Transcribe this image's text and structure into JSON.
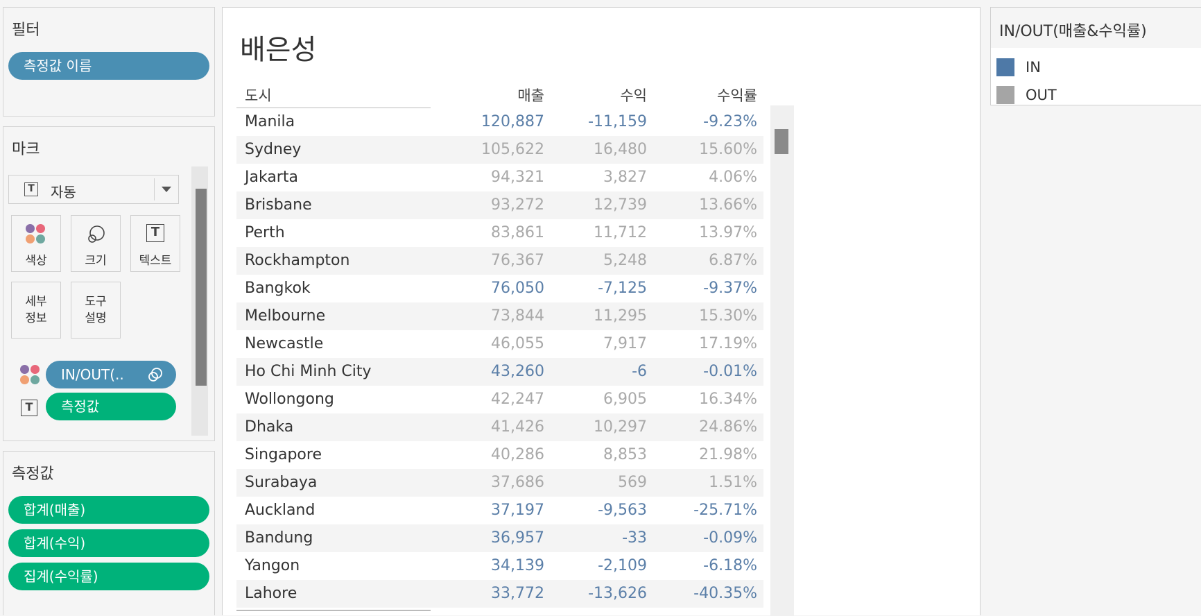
{
  "filters": {
    "title": "필터",
    "pills": [
      "측정값 이름"
    ]
  },
  "marks": {
    "title": "마크",
    "type_dropdown": "자동",
    "buttons": {
      "color": "색상",
      "size": "크기",
      "text": "텍스트",
      "detail": [
        "세부",
        "정보"
      ],
      "tooltip": [
        "도구",
        "설명"
      ]
    },
    "color_pill": "IN/OUT(..",
    "text_pill": "측정값"
  },
  "measures": {
    "title": "측정값",
    "pills": [
      "합계(매출)",
      "합계(수익)",
      "집계(수익률)"
    ]
  },
  "sheet": {
    "title": "배은성",
    "columns": [
      "도시",
      "매출",
      "수익",
      "수익률"
    ],
    "rows": [
      {
        "city": "Manila",
        "sales": "120,887",
        "profit": "-11,159",
        "rate": "-9.23%",
        "group": "in"
      },
      {
        "city": "Sydney",
        "sales": "105,622",
        "profit": "16,480",
        "rate": "15.60%",
        "group": "out"
      },
      {
        "city": "Jakarta",
        "sales": "94,321",
        "profit": "3,827",
        "rate": "4.06%",
        "group": "out"
      },
      {
        "city": "Brisbane",
        "sales": "93,272",
        "profit": "12,739",
        "rate": "13.66%",
        "group": "out"
      },
      {
        "city": "Perth",
        "sales": "83,861",
        "profit": "11,712",
        "rate": "13.97%",
        "group": "out"
      },
      {
        "city": "Rockhampton",
        "sales": "76,367",
        "profit": "5,248",
        "rate": "6.87%",
        "group": "out"
      },
      {
        "city": "Bangkok",
        "sales": "76,050",
        "profit": "-7,125",
        "rate": "-9.37%",
        "group": "in"
      },
      {
        "city": "Melbourne",
        "sales": "73,844",
        "profit": "11,295",
        "rate": "15.30%",
        "group": "out"
      },
      {
        "city": "Newcastle",
        "sales": "46,055",
        "profit": "7,917",
        "rate": "17.19%",
        "group": "out"
      },
      {
        "city": "Ho Chi Minh City",
        "sales": "43,260",
        "profit": "-6",
        "rate": "-0.01%",
        "group": "in"
      },
      {
        "city": "Wollongong",
        "sales": "42,247",
        "profit": "6,905",
        "rate": "16.34%",
        "group": "out"
      },
      {
        "city": "Dhaka",
        "sales": "41,426",
        "profit": "10,297",
        "rate": "24.86%",
        "group": "out"
      },
      {
        "city": "Singapore",
        "sales": "40,286",
        "profit": "8,853",
        "rate": "21.98%",
        "group": "out"
      },
      {
        "city": "Surabaya",
        "sales": "37,686",
        "profit": "569",
        "rate": "1.51%",
        "group": "out"
      },
      {
        "city": "Auckland",
        "sales": "37,197",
        "profit": "-9,563",
        "rate": "-25.71%",
        "group": "in"
      },
      {
        "city": "Bandung",
        "sales": "36,957",
        "profit": "-33",
        "rate": "-0.09%",
        "group": "in"
      },
      {
        "city": "Yangon",
        "sales": "34,139",
        "profit": "-2,109",
        "rate": "-6.18%",
        "group": "in"
      },
      {
        "city": "Lahore",
        "sales": "33,772",
        "profit": "-13,626",
        "rate": "-40.35%",
        "group": "in"
      }
    ]
  },
  "legend": {
    "title": "IN/OUT(매출&수익률)",
    "items": [
      {
        "label": "IN",
        "color": "#4e79a7"
      },
      {
        "label": "OUT",
        "color": "#a5a5a5"
      }
    ]
  },
  "colors": {
    "pill_blue": "#4a8fb3",
    "pill_green": "#00b27a",
    "in_text": "#5b7fa8",
    "out_text": "#a9a9a9"
  }
}
